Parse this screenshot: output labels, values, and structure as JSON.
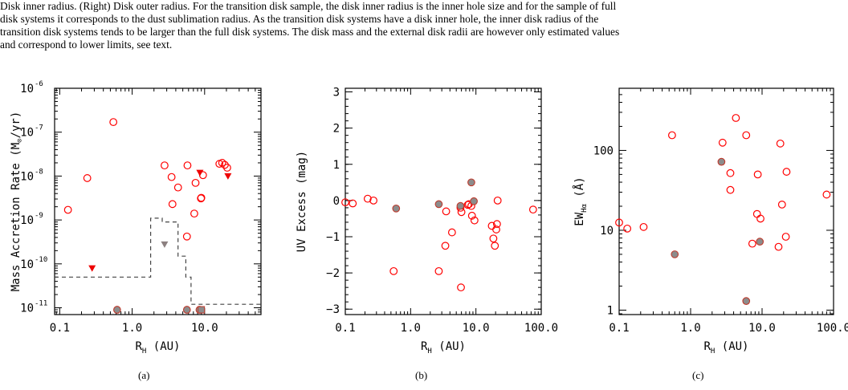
{
  "caption": {
    "line1": "Disk inner radius. (Right) Disk outer radius. For the transition disk sample, the disk inner radius is the inner hole size and for the sample of full",
    "line2": "disk systems it corresponds to the dust sublimation radius. As the transition disk systems have a disk inner hole, the inner disk radius of the",
    "line3": "transition disk systems tends to be larger than the full disk systems. The disk mass and the external disk radii are however only estimated values",
    "line4": "and correspond to lower limits, see text."
  },
  "colors": {
    "open_marker": "#ff0000",
    "filled_marker_fill": "#8c8c8c",
    "filled_marker_edge": "#c0392b",
    "upper_limit_red": "#ee0000",
    "upper_limit_gray": "#8c8080",
    "dashed_line": "#444444"
  },
  "chart_data": [
    {
      "type": "scatter",
      "panel_label": "(a)",
      "title": "",
      "xlabel": "R",
      "xlabel_sub": "H",
      "xlabel_unit": " (AU)",
      "ylabel": "Mass Accretion Rate (M",
      "ylabel_sun": "⊙",
      "ylabel_end": "/yr)",
      "xscale": "log",
      "yscale": "log",
      "xlim": [
        0.085,
        60
      ],
      "ylim": [
        7e-12,
        1e-06
      ],
      "xticks": [
        0.1,
        1.0,
        10.0
      ],
      "xtick_labels": [
        "0.1",
        "1.0",
        "10.0"
      ],
      "yticks": [
        1e-11,
        1e-10,
        1e-09,
        1e-08,
        1e-07,
        1e-06
      ],
      "ytick_labels": [
        "10",
        "10",
        "10",
        "10",
        "10",
        "10"
      ],
      "ytick_exps": [
        "-11",
        "-10",
        "-9",
        "-8",
        "-7",
        "-6"
      ],
      "open_points": [
        [
          0.13,
          1.7e-09
        ],
        [
          0.24,
          9e-09
        ],
        [
          0.55,
          1.7e-07
        ],
        [
          2.8,
          1.75e-08
        ],
        [
          3.5,
          9.5e-09
        ],
        [
          4.3,
          5.5e-09
        ],
        [
          3.6,
          2.3e-09
        ],
        [
          5.8,
          1.75e-08
        ],
        [
          5.7,
          4.2e-10
        ],
        [
          7.5,
          7e-09
        ],
        [
          7.2,
          1.4e-09
        ],
        [
          8.9,
          3.1e-09
        ],
        [
          9.0,
          3.2e-09
        ],
        [
          9.5,
          1.05e-08
        ],
        [
          16.0,
          1.9e-08
        ],
        [
          17.5,
          2e-08
        ],
        [
          19.0,
          1.8e-08
        ],
        [
          20.5,
          1.55e-08
        ]
      ],
      "filled_points": [
        [
          0.62,
          9e-12
        ],
        [
          5.7,
          9e-12
        ],
        [
          8.5,
          9e-12
        ]
      ],
      "filled_square_points": [
        [
          9.0,
          9e-12
        ]
      ],
      "upper_limits_red": [
        [
          0.28,
          8e-11
        ],
        [
          8.6,
          1.2e-08
        ],
        [
          21.0,
          1e-08
        ]
      ],
      "upper_limits_gray": [
        [
          2.8,
          2.8e-10
        ]
      ],
      "dashed_line": [
        [
          0.085,
          5e-11
        ],
        [
          1.8,
          5e-11
        ],
        [
          1.8,
          1.1e-09
        ],
        [
          2.6,
          1.1e-09
        ],
        [
          2.6,
          9e-10
        ],
        [
          4.3,
          9e-10
        ],
        [
          4.3,
          1.5e-10
        ],
        [
          5.5,
          1.5e-10
        ],
        [
          5.5,
          5e-11
        ],
        [
          6.5,
          5e-11
        ],
        [
          6.5,
          1.2e-11
        ],
        [
          60,
          1.2e-11
        ]
      ]
    },
    {
      "type": "scatter",
      "panel_label": "(b)",
      "title": "",
      "xlabel": "R",
      "xlabel_sub": "H",
      "xlabel_unit": " (AU)",
      "ylabel": "UV Excess (mag)",
      "xscale": "log",
      "yscale": "linear",
      "xlim": [
        0.1,
        100
      ],
      "ylim": [
        -3.15,
        3.1
      ],
      "xticks": [
        0.1,
        1.0,
        10.0,
        100.0
      ],
      "xtick_labels": [
        "0.1",
        "1.0",
        "10.0",
        "100.0"
      ],
      "yticks": [
        -3,
        -2,
        -1,
        0,
        1,
        2,
        3
      ],
      "ytick_labels": [
        "−3",
        "−2",
        "−1",
        "0",
        "1",
        "2",
        "3"
      ],
      "open_points": [
        [
          0.1,
          -0.05
        ],
        [
          0.13,
          -0.08
        ],
        [
          0.22,
          0.05
        ],
        [
          0.27,
          0.0
        ],
        [
          0.55,
          -1.95
        ],
        [
          2.7,
          -1.95
        ],
        [
          3.4,
          -1.25
        ],
        [
          3.5,
          -0.3
        ],
        [
          4.3,
          -0.88
        ],
        [
          5.8,
          -0.2
        ],
        [
          5.9,
          -2.4
        ],
        [
          6.0,
          -0.32
        ],
        [
          7.5,
          -0.12
        ],
        [
          7.8,
          -0.1
        ],
        [
          8.5,
          -0.15
        ],
        [
          8.7,
          -0.42
        ],
        [
          9.5,
          -0.55
        ],
        [
          17.5,
          -0.7
        ],
        [
          18.5,
          -1.05
        ],
        [
          19.5,
          -1.25
        ],
        [
          20.5,
          -0.8
        ],
        [
          21.0,
          -0.65
        ],
        [
          21.5,
          0.0
        ],
        [
          75,
          -0.25
        ]
      ],
      "filled_points": [
        [
          0.6,
          -0.22
        ],
        [
          2.7,
          -0.1
        ],
        [
          5.8,
          -0.15
        ],
        [
          8.5,
          0.5
        ],
        [
          9.3,
          -0.02
        ]
      ]
    },
    {
      "type": "scatter",
      "panel_label": "(c)",
      "title": "",
      "xlabel": "R",
      "xlabel_sub": "H",
      "xlabel_unit": " (AU)",
      "ylabel": "EW",
      "ylabel_sub": "Hα",
      "ylabel_unit": " (Å)",
      "xscale": "log",
      "yscale": "log",
      "xlim": [
        0.1,
        100
      ],
      "ylim": [
        0.88,
        600
      ],
      "xticks": [
        0.1,
        1.0,
        10.0,
        100.0
      ],
      "xtick_labels": [
        "0.1",
        "1.0",
        "10.0",
        "100.0"
      ],
      "yticks": [
        1,
        10,
        100
      ],
      "ytick_labels": [
        "1",
        "10",
        "100"
      ],
      "open_points": [
        [
          0.1,
          12.5
        ],
        [
          0.13,
          10.5
        ],
        [
          0.22,
          11
        ],
        [
          0.55,
          155
        ],
        [
          2.8,
          125
        ],
        [
          3.6,
          52
        ],
        [
          3.6,
          32
        ],
        [
          4.3,
          255
        ],
        [
          6.0,
          155
        ],
        [
          7.3,
          6.8
        ],
        [
          8.5,
          16
        ],
        [
          8.7,
          50
        ],
        [
          9.5,
          14
        ],
        [
          17.0,
          6.2
        ],
        [
          18.0,
          122
        ],
        [
          19.0,
          21
        ],
        [
          21.5,
          8.3
        ],
        [
          22.0,
          54
        ],
        [
          80,
          28
        ]
      ],
      "filled_points": [
        [
          0.6,
          5.0
        ],
        [
          2.7,
          72
        ],
        [
          6.0,
          1.3
        ],
        [
          9.3,
          7.2
        ]
      ]
    }
  ]
}
